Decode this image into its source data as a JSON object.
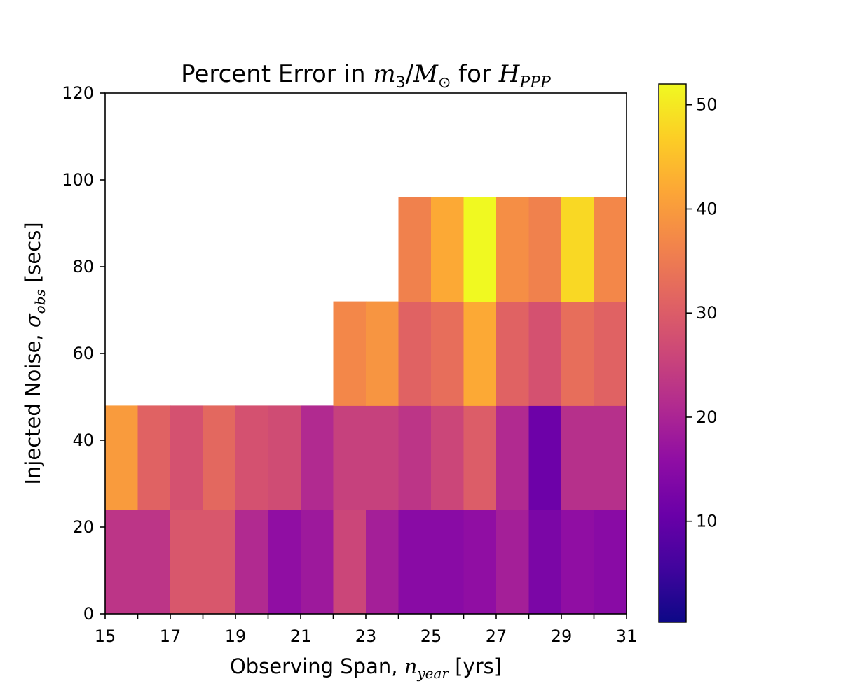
{
  "chart_data": {
    "type": "heatmap",
    "title": "Percent Error in m3/M⊙ for HPPP",
    "title_parts": {
      "prefix": "Percent Error in ",
      "var": "m",
      "var_sub": "3",
      "slash": "/",
      "var2": "M",
      "var2_sub": "⊙",
      "mid": " for ",
      "var3": "H",
      "var3_sub": "PPP"
    },
    "xlabel": "Observing Span, n_year [yrs]",
    "xlabel_parts": {
      "prefix": "Observing Span, ",
      "var": "n",
      "var_sub": "year",
      "suffix": " [yrs]"
    },
    "ylabel": "Injected Noise, σ_obs [secs]",
    "ylabel_parts": {
      "prefix": "Injected Noise, ",
      "var": "σ",
      "var_sub": "obs",
      "suffix": " [secs]"
    },
    "x_edges": [
      15,
      16,
      17,
      18,
      19,
      20,
      21,
      22,
      23,
      24,
      25,
      26,
      27,
      28,
      29,
      30,
      31
    ],
    "x_tick_labels": [
      "15",
      "17",
      "19",
      "21",
      "23",
      "25",
      "27",
      "29",
      "31"
    ],
    "y_edges": [
      0,
      24,
      48,
      72,
      96
    ],
    "y_ticks": [
      0,
      20,
      40,
      60,
      80,
      100,
      120
    ],
    "xlim": [
      15,
      31
    ],
    "ylim": [
      0,
      120
    ],
    "values": [
      [
        23,
        23,
        29,
        29,
        21,
        16,
        18,
        26,
        19,
        15,
        15,
        16,
        19,
        13,
        16,
        15
      ],
      [
        40,
        31,
        28,
        32,
        28,
        27,
        21,
        25,
        25,
        23,
        26,
        30,
        21,
        11,
        22,
        22
      ],
      [
        null,
        null,
        null,
        null,
        null,
        null,
        null,
        37,
        39,
        31,
        33,
        42,
        31,
        28,
        33,
        31
      ],
      [
        null,
        null,
        null,
        null,
        null,
        null,
        null,
        null,
        null,
        36,
        42,
        52,
        38,
        36,
        48,
        37
      ]
    ],
    "colormap": "plasma",
    "colorbar": {
      "min": 0.3,
      "max": 52,
      "ticks": [
        10,
        20,
        30,
        40,
        50
      ]
    },
    "grid": false
  }
}
